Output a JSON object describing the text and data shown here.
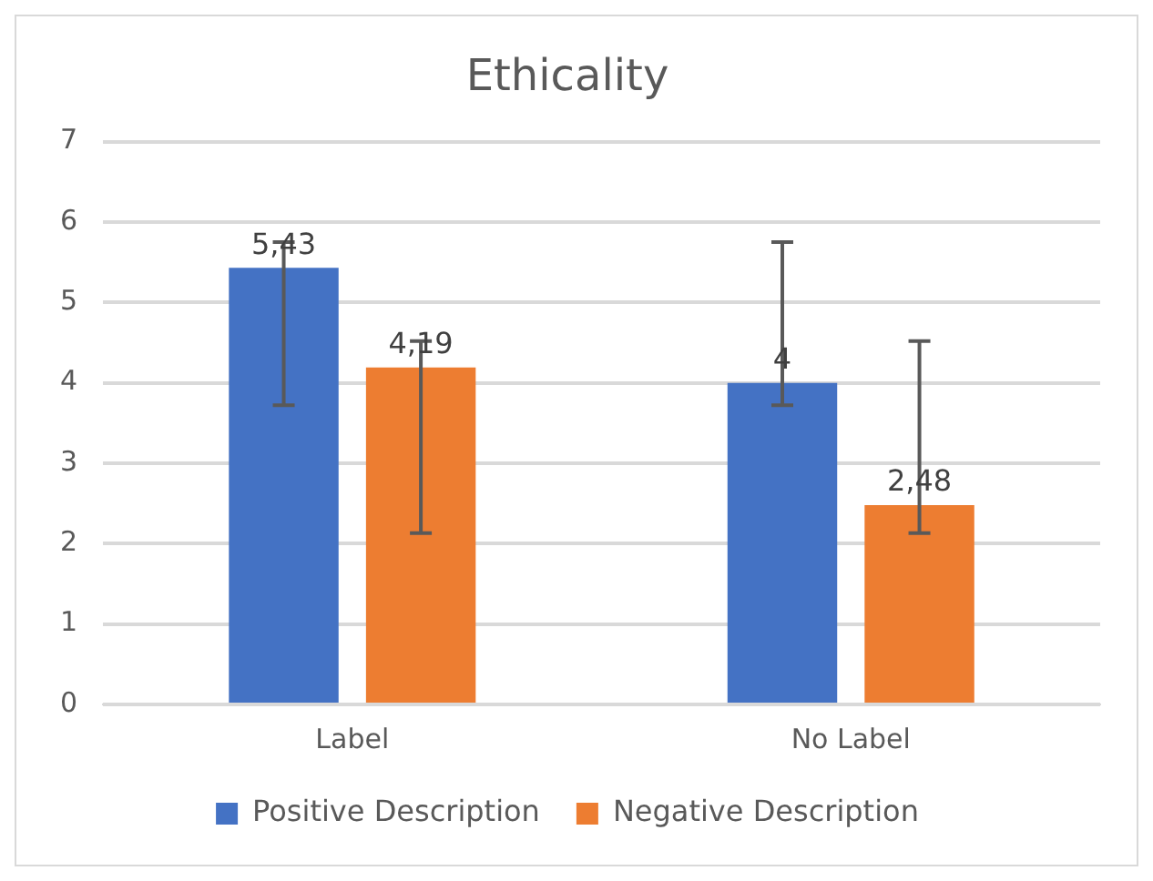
{
  "chart_data": {
    "type": "bar",
    "title": "Ethicality",
    "categories": [
      "Label",
      "No Label"
    ],
    "series": [
      {
        "name": "Positive Description",
        "color": "#4472c4",
        "values": [
          5.43,
          4
        ],
        "errors": [
          [
            3.72,
            5.75
          ],
          [
            3.72,
            5.75
          ]
        ],
        "value_labels": [
          "5,43",
          "4"
        ]
      },
      {
        "name": "Negative Description",
        "color": "#ed7d31",
        "values": [
          4.19,
          2.48
        ],
        "errors": [
          [
            2.13,
            4.52
          ],
          [
            2.13,
            4.52
          ]
        ],
        "value_labels": [
          "4,19",
          "2,48"
        ]
      }
    ],
    "ylim": [
      0,
      7
    ],
    "yticks": [
      0,
      1,
      2,
      3,
      4,
      5,
      6,
      7
    ],
    "grid": "y",
    "legend": "bottom"
  }
}
